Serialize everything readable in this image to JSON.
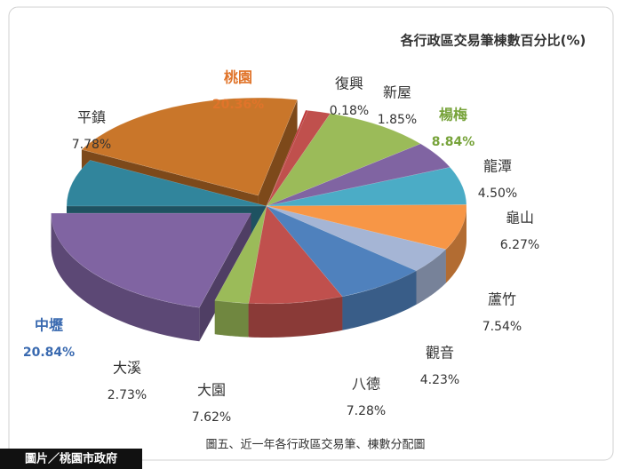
{
  "chart_data": {
    "type": "pie",
    "title": "各行政區交易筆棟數百分比(%)",
    "categories": [
      "桃園",
      "復興",
      "新屋",
      "楊梅",
      "龍潭",
      "龜山",
      "蘆竹",
      "觀音",
      "八德",
      "大園",
      "大溪",
      "中壢",
      "平鎮"
    ],
    "values": [
      20.36,
      0.18,
      1.85,
      8.84,
      4.5,
      6.27,
      7.54,
      4.23,
      7.28,
      7.62,
      2.73,
      20.84,
      7.78
    ],
    "value_labels": [
      "20.36%",
      "0.18%",
      "1.85%",
      "8.84%",
      "4.50%",
      "6.27%",
      "7.54%",
      "4.23%",
      "7.28%",
      "7.62%",
      "2.73%",
      "20.84%",
      "7.78%"
    ],
    "colors": [
      "#c9762a",
      "#c0383a",
      "#c0504d",
      "#9bbb59",
      "#8064a2",
      "#4bacc6",
      "#f79646",
      "#a5b5d5",
      "#4f81bd",
      "#c0504d",
      "#9bbb59",
      "#8064a2",
      "#31859c"
    ],
    "label_colors": [
      "#e0742a",
      "#333333",
      "#333333",
      "#77a33a",
      "#333333",
      "#333333",
      "#333333",
      "#333333",
      "#333333",
      "#333333",
      "#333333",
      "#3a6ab0",
      "#333333"
    ],
    "exploded": [
      "桃園",
      "中壢"
    ]
  },
  "caption": "圖五、近一年各行政區交易筆、棟數分配圖",
  "credit": "圖片／桃園市政府"
}
